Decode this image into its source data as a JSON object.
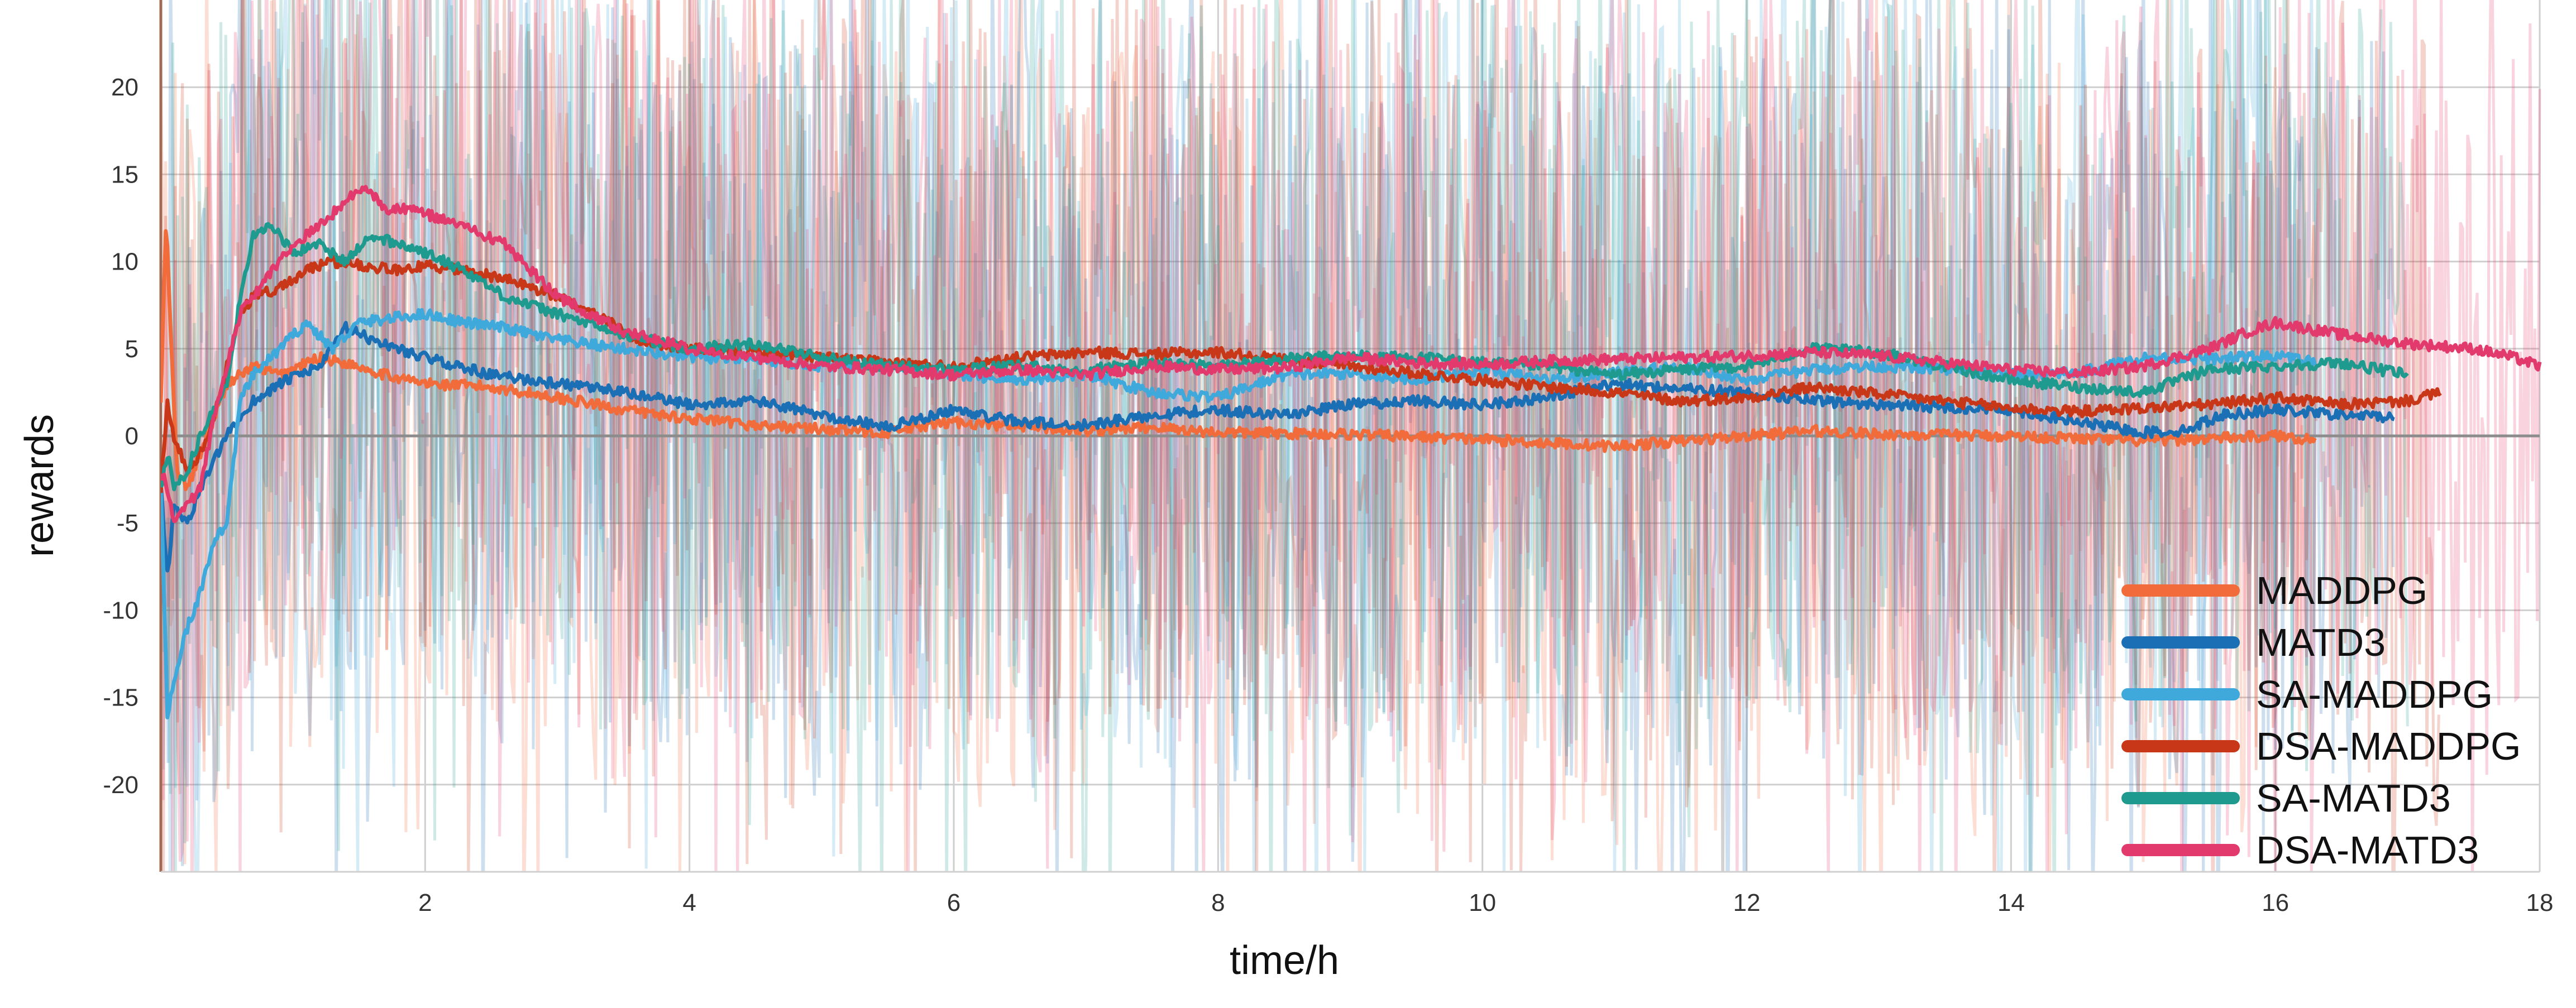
{
  "chart_data": {
    "type": "line",
    "title": "",
    "xlabel": "time/h",
    "ylabel": "rewards",
    "xlim": [
      0,
      18
    ],
    "ylim": [
      -25,
      25
    ],
    "grid": true,
    "legend_placement": "bottom-right",
    "x_ticks": [
      "2",
      "4",
      "6",
      "8",
      "10",
      "12",
      "14",
      "16",
      "18"
    ],
    "y_ticks": [
      "20",
      "15",
      "10",
      "5",
      "0",
      "-5",
      "-10",
      "-15",
      "-20"
    ],
    "series": [
      {
        "name": "MADDPG",
        "color": "#F26B3A",
        "points": [
          [
            0,
            2
          ],
          [
            0.04,
            12.5
          ],
          [
            0.08,
            5
          ],
          [
            0.12,
            -2
          ],
          [
            0.2,
            -3
          ],
          [
            0.3,
            -1
          ],
          [
            0.5,
            3
          ],
          [
            0.7,
            4
          ],
          [
            0.9,
            3.5
          ],
          [
            1.2,
            4.5
          ],
          [
            1.5,
            4
          ],
          [
            1.7,
            3.5
          ],
          [
            2.0,
            3
          ],
          [
            2.5,
            2.8
          ],
          [
            3.0,
            2.2
          ],
          [
            3.5,
            1.5
          ],
          [
            4.0,
            1
          ],
          [
            4.5,
            0.6
          ],
          [
            5.0,
            0.4
          ],
          [
            5.5,
            0.2
          ],
          [
            6.0,
            0.8
          ],
          [
            6.5,
            0.5
          ],
          [
            7.0,
            0.3
          ],
          [
            7.5,
            0.5
          ],
          [
            8.0,
            0.2
          ],
          [
            9.0,
            0.1
          ],
          [
            10.0,
            -0.2
          ],
          [
            11.0,
            -0.6
          ],
          [
            12.0,
            0
          ],
          [
            12.5,
            0.3
          ],
          [
            13.0,
            0.1
          ],
          [
            14.0,
            0
          ],
          [
            15.0,
            -0.3
          ],
          [
            16.0,
            0
          ],
          [
            16.3,
            -0.2
          ]
        ]
      },
      {
        "name": "MATD3",
        "color": "#1B6FB4",
        "points": [
          [
            0,
            -3
          ],
          [
            0.05,
            -8
          ],
          [
            0.1,
            -4
          ],
          [
            0.2,
            -5
          ],
          [
            0.3,
            -3
          ],
          [
            0.5,
            0
          ],
          [
            0.7,
            2
          ],
          [
            0.9,
            3
          ],
          [
            1.2,
            4
          ],
          [
            1.4,
            6.2
          ],
          [
            1.6,
            5.5
          ],
          [
            1.8,
            5
          ],
          [
            2.0,
            4.5
          ],
          [
            2.5,
            3.5
          ],
          [
            3.0,
            3
          ],
          [
            3.5,
            2.5
          ],
          [
            4.0,
            1.8
          ],
          [
            4.5,
            2
          ],
          [
            5.0,
            1.2
          ],
          [
            5.5,
            0.5
          ],
          [
            6.0,
            1.5
          ],
          [
            6.5,
            0.8
          ],
          [
            7.0,
            0.6
          ],
          [
            7.5,
            1.2
          ],
          [
            8.0,
            1.5
          ],
          [
            8.5,
            1.2
          ],
          [
            9.0,
            1.8
          ],
          [
            9.5,
            2
          ],
          [
            10.0,
            1.8
          ],
          [
            10.5,
            2.2
          ],
          [
            11.0,
            3
          ],
          [
            11.5,
            2.7
          ],
          [
            12.0,
            2.5
          ],
          [
            12.5,
            2
          ],
          [
            13.0,
            1.8
          ],
          [
            14.0,
            1.5
          ],
          [
            14.5,
            0.8
          ],
          [
            15.0,
            0.2
          ],
          [
            15.3,
            0.3
          ],
          [
            15.6,
            1.2
          ],
          [
            16.0,
            1.5
          ],
          [
            16.5,
            1.2
          ],
          [
            16.9,
            1.1
          ]
        ]
      },
      {
        "name": "SA-MADDPG",
        "color": "#3FA9DC",
        "points": [
          [
            0,
            -3
          ],
          [
            0.05,
            -16
          ],
          [
            0.1,
            -14
          ],
          [
            0.2,
            -11
          ],
          [
            0.3,
            -9
          ],
          [
            0.4,
            -6
          ],
          [
            0.5,
            -5
          ],
          [
            0.6,
            2
          ],
          [
            0.7,
            3.5
          ],
          [
            0.9,
            5
          ],
          [
            1.1,
            6.5
          ],
          [
            1.3,
            5
          ],
          [
            1.5,
            6.5
          ],
          [
            1.8,
            6.8
          ],
          [
            2.0,
            7
          ],
          [
            2.3,
            6.5
          ],
          [
            2.6,
            6.2
          ],
          [
            3.0,
            5.5
          ],
          [
            3.5,
            5
          ],
          [
            4.0,
            4.5
          ],
          [
            4.5,
            4.4
          ],
          [
            5.0,
            4
          ],
          [
            5.5,
            4.2
          ],
          [
            6.0,
            3.5
          ],
          [
            6.5,
            3.2
          ],
          [
            7.0,
            3.5
          ],
          [
            7.5,
            2.5
          ],
          [
            8.0,
            2.2
          ],
          [
            8.5,
            3.5
          ],
          [
            9.0,
            3.6
          ],
          [
            9.5,
            3.2
          ],
          [
            10.0,
            3.8
          ],
          [
            10.5,
            3.2
          ],
          [
            11.0,
            3.6
          ],
          [
            11.5,
            4
          ],
          [
            12.0,
            3.2
          ],
          [
            12.5,
            3.8
          ],
          [
            13.0,
            4
          ],
          [
            13.5,
            3.8
          ],
          [
            14.0,
            3.5
          ],
          [
            14.5,
            3.6
          ],
          [
            15.0,
            4.5
          ],
          [
            15.5,
            4.4
          ],
          [
            16.0,
            4.6
          ],
          [
            16.3,
            4.2
          ]
        ]
      },
      {
        "name": "DSA-MADDPG",
        "color": "#C83818",
        "points": [
          [
            0,
            -3
          ],
          [
            0.05,
            2
          ],
          [
            0.1,
            0
          ],
          [
            0.2,
            -2
          ],
          [
            0.3,
            -1
          ],
          [
            0.4,
            1
          ],
          [
            0.5,
            4
          ],
          [
            0.6,
            7
          ],
          [
            0.7,
            8
          ],
          [
            0.9,
            8.5
          ],
          [
            1.1,
            9.5
          ],
          [
            1.3,
            10
          ],
          [
            1.5,
            9.8
          ],
          [
            1.8,
            9.5
          ],
          [
            2.0,
            9.8
          ],
          [
            2.3,
            9.5
          ],
          [
            2.6,
            9
          ],
          [
            3.0,
            8
          ],
          [
            3.3,
            7
          ],
          [
            3.6,
            5.5
          ],
          [
            4.0,
            5
          ],
          [
            4.5,
            4.8
          ],
          [
            5.0,
            4.5
          ],
          [
            5.5,
            4.2
          ],
          [
            6.0,
            4
          ],
          [
            6.5,
            4.5
          ],
          [
            7.0,
            4.8
          ],
          [
            7.5,
            4.7
          ],
          [
            8.0,
            4.8
          ],
          [
            8.5,
            4.4
          ],
          [
            9.0,
            4
          ],
          [
            9.5,
            3.6
          ],
          [
            10.0,
            3.2
          ],
          [
            10.5,
            2.8
          ],
          [
            11.0,
            2.5
          ],
          [
            11.5,
            2
          ],
          [
            12.0,
            2.2
          ],
          [
            12.5,
            2.8
          ],
          [
            13.0,
            2.4
          ],
          [
            13.5,
            2
          ],
          [
            14.0,
            1.6
          ],
          [
            14.5,
            1.4
          ],
          [
            15.0,
            1.6
          ],
          [
            15.5,
            1.8
          ],
          [
            16.0,
            2.2
          ],
          [
            16.5,
            1.8
          ],
          [
            17.0,
            2
          ],
          [
            17.25,
            2.5
          ]
        ]
      },
      {
        "name": "SA-MATD3",
        "color": "#1E9A8E",
        "points": [
          [
            0,
            -3
          ],
          [
            0.05,
            -1
          ],
          [
            0.1,
            -3
          ],
          [
            0.2,
            -2
          ],
          [
            0.3,
            0
          ],
          [
            0.5,
            3
          ],
          [
            0.6,
            8
          ],
          [
            0.7,
            11.5
          ],
          [
            0.8,
            12
          ],
          [
            0.9,
            11.5
          ],
          [
            1.0,
            10.5
          ],
          [
            1.2,
            11
          ],
          [
            1.4,
            10
          ],
          [
            1.6,
            11.5
          ],
          [
            1.8,
            11
          ],
          [
            2.0,
            10.5
          ],
          [
            2.3,
            9.5
          ],
          [
            2.6,
            8
          ],
          [
            3.0,
            7
          ],
          [
            3.5,
            5.8
          ],
          [
            4.0,
            5
          ],
          [
            4.5,
            5.3
          ],
          [
            5.0,
            4.5
          ],
          [
            5.5,
            4
          ],
          [
            6.0,
            3.8
          ],
          [
            6.5,
            4
          ],
          [
            7.0,
            3.8
          ],
          [
            7.5,
            4.2
          ],
          [
            8.0,
            4
          ],
          [
            8.5,
            4.4
          ],
          [
            9.0,
            4.6
          ],
          [
            9.5,
            4.5
          ],
          [
            10.0,
            4.2
          ],
          [
            10.5,
            4
          ],
          [
            11.0,
            3.5
          ],
          [
            11.5,
            3.8
          ],
          [
            12.0,
            4
          ],
          [
            12.5,
            5
          ],
          [
            13.0,
            4.8
          ],
          [
            13.5,
            4
          ],
          [
            14.0,
            3.2
          ],
          [
            14.5,
            2.8
          ],
          [
            15.0,
            2.5
          ],
          [
            15.5,
            3.8
          ],
          [
            16.0,
            4
          ],
          [
            16.5,
            4.2
          ],
          [
            17.0,
            3.5
          ]
        ]
      },
      {
        "name": "DSA-MATD3",
        "color": "#E23A6C",
        "points": [
          [
            0,
            -2
          ],
          [
            0.05,
            -3
          ],
          [
            0.1,
            -5
          ],
          [
            0.2,
            -4
          ],
          [
            0.3,
            -3
          ],
          [
            0.4,
            1
          ],
          [
            0.5,
            4
          ],
          [
            0.6,
            7
          ],
          [
            0.8,
            9
          ],
          [
            1.0,
            11
          ],
          [
            1.2,
            12
          ],
          [
            1.4,
            13.5
          ],
          [
            1.55,
            14.2
          ],
          [
            1.7,
            13
          ],
          [
            1.9,
            13
          ],
          [
            2.1,
            12.5
          ],
          [
            2.3,
            12
          ],
          [
            2.6,
            11
          ],
          [
            2.8,
            9.5
          ],
          [
            3.0,
            8
          ],
          [
            3.5,
            6
          ],
          [
            4.0,
            5
          ],
          [
            4.5,
            4.5
          ],
          [
            5.0,
            4
          ],
          [
            5.5,
            3.8
          ],
          [
            6.0,
            3.5
          ],
          [
            6.5,
            3.8
          ],
          [
            7.0,
            3.5
          ],
          [
            7.5,
            4
          ],
          [
            8.0,
            3.8
          ],
          [
            8.5,
            3.9
          ],
          [
            9.0,
            4.5
          ],
          [
            9.5,
            4.2
          ],
          [
            10.0,
            4.1
          ],
          [
            10.5,
            4.3
          ],
          [
            11.0,
            4.4
          ],
          [
            11.5,
            4.5
          ],
          [
            12.0,
            4.6
          ],
          [
            12.5,
            4.8
          ],
          [
            13.0,
            4.6
          ],
          [
            13.5,
            4.2
          ],
          [
            14.0,
            3.8
          ],
          [
            14.5,
            3.6
          ],
          [
            15.0,
            4
          ],
          [
            15.5,
            5
          ],
          [
            15.8,
            6
          ],
          [
            16.0,
            6.5
          ],
          [
            16.5,
            5.8
          ],
          [
            17.0,
            5.3
          ],
          [
            17.5,
            5
          ],
          [
            17.8,
            4.5
          ],
          [
            18.0,
            4
          ]
        ]
      }
    ]
  }
}
